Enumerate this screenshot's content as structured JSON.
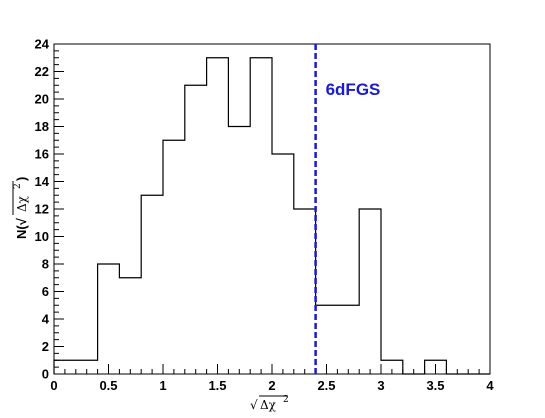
{
  "chart_data": {
    "type": "bar",
    "subtype": "histogram-step",
    "title": "",
    "xlabel": {
      "prefix": "√",
      "radicand": "Δχ",
      "sup": "2"
    },
    "ylabel": {
      "prefix": "N(√",
      "radicand": "Δχ",
      "sup": "2",
      "suffix": ")"
    },
    "xlim": [
      0,
      4
    ],
    "ylim": [
      0,
      24
    ],
    "bin_edges": [
      0,
      0.2,
      0.4,
      0.6,
      0.8,
      1.0,
      1.2,
      1.4,
      1.6,
      1.8,
      2.0,
      2.2,
      2.4,
      2.6,
      2.8,
      3.0,
      3.2,
      3.4,
      3.6,
      3.8,
      4.0
    ],
    "values": [
      1,
      1,
      8,
      7,
      13,
      17,
      21,
      23,
      18,
      23,
      16,
      12,
      5,
      5,
      12,
      1,
      0,
      1,
      0,
      0
    ],
    "x_ticks": [
      0,
      0.5,
      1,
      1.5,
      2,
      2.5,
      3,
      3.5,
      4
    ],
    "x_tick_labels": [
      "0",
      "0.5",
      "1",
      "1.5",
      "2",
      "2.5",
      "3",
      "3.5",
      "4"
    ],
    "y_ticks": [
      0,
      2,
      4,
      6,
      8,
      10,
      12,
      14,
      16,
      18,
      20,
      22,
      24
    ],
    "y_tick_labels": [
      "0",
      "2",
      "4",
      "6",
      "8",
      "10",
      "12",
      "14",
      "16",
      "18",
      "20",
      "22",
      "24"
    ],
    "grid": false,
    "line_color": "#000000",
    "marker": {
      "x": 2.4,
      "label": "6dFGS",
      "color": "#1a1ad0",
      "style": "dashed"
    }
  }
}
